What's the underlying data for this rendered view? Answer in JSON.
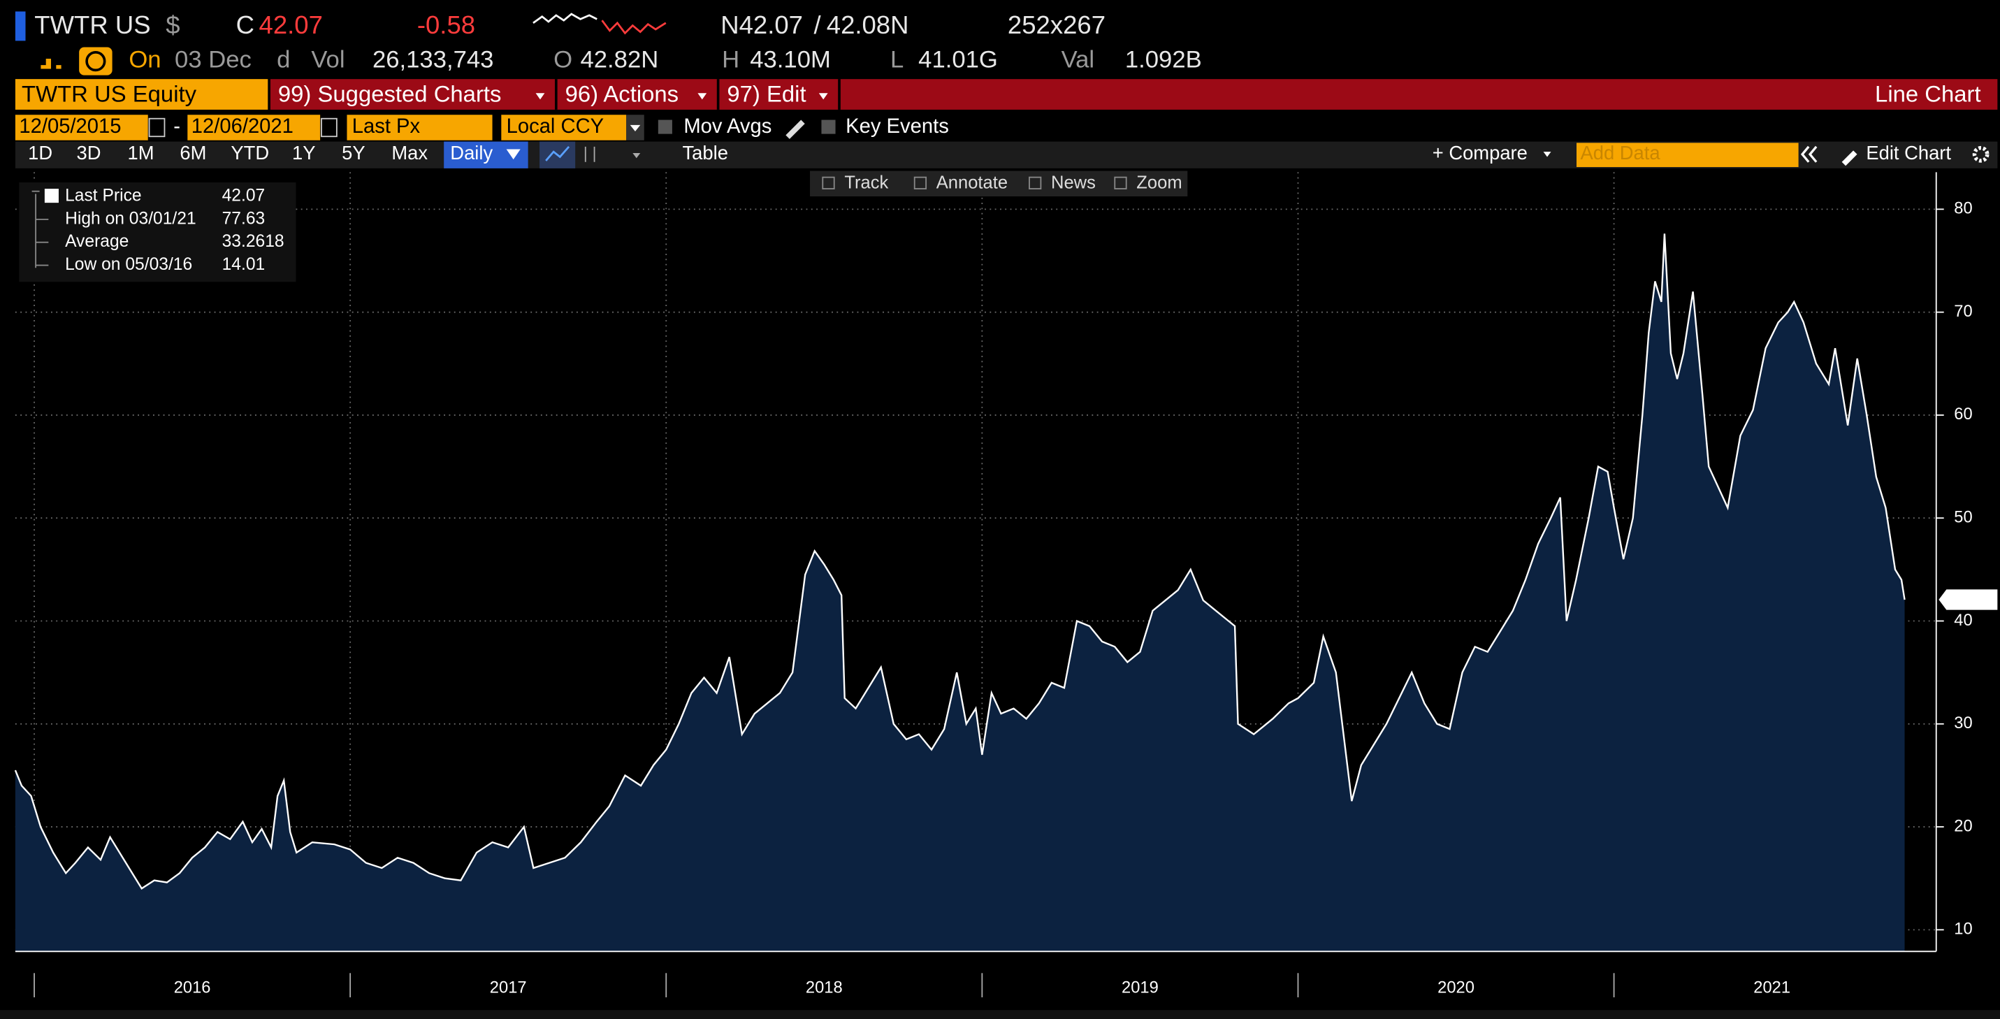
{
  "header": {
    "ticker": "TWTR US",
    "currency": "$",
    "close_label": "C",
    "price": "42.07",
    "change": "-0.58",
    "bid": "N42.07",
    "sep": "/",
    "ask": "42.08N",
    "size": "252x267"
  },
  "quote": {
    "on": "On",
    "date": "03 Dec",
    "period": "d",
    "vol_label": "Vol",
    "vol": "26,133,743",
    "open_label": "O",
    "open": "42.82N",
    "high_label": "H",
    "high": "43.10M",
    "low_label": "L",
    "low": "41.01G",
    "val_label": "Val",
    "val": "1.092B"
  },
  "toolbar": {
    "security": "TWTR US Equity",
    "menus": [
      "99) Suggested Charts",
      "96) Actions",
      "97) Edit"
    ],
    "chart_type": "Line Chart"
  },
  "settings": {
    "start": "12/05/2015",
    "dash": "-",
    "end": "12/06/2021",
    "field": "Last Px",
    "currency": "Local CCY",
    "mov_avgs": "Mov Avgs",
    "key_events": "Key Events"
  },
  "controls": {
    "ranges": [
      "1D",
      "3D",
      "1M",
      "6M",
      "YTD",
      "1Y",
      "5Y",
      "Max"
    ],
    "frequency": "Daily",
    "table": "Table",
    "compare": "+ Compare",
    "add_data": "Add Data",
    "edit_chart": "Edit Chart"
  },
  "chart_tools": [
    "Track",
    "Annotate",
    "News",
    "Zoom"
  ],
  "chart_data": {
    "type": "area",
    "last_value_label": "42.07",
    "stats": [
      {
        "label": "High on 03/01/21",
        "value": "77.63"
      },
      {
        "label": "Average",
        "value": "33.2618"
      },
      {
        "label": "Low on 05/03/16",
        "value": "14.01"
      }
    ],
    "xlim": [
      2015.94,
      2022.02
    ],
    "ylim": [
      7.9,
      83.6
    ],
    "xticks": [
      2016,
      2017,
      2018,
      2019,
      2020,
      2021
    ],
    "yticks": [
      10,
      20,
      30,
      40,
      50,
      60,
      70,
      80
    ],
    "grid": true,
    "x": [
      2015.94,
      2015.96,
      2015.99,
      2016.02,
      2016.06,
      2016.1,
      2016.13,
      2016.17,
      2016.21,
      2016.24,
      2016.28,
      2016.34,
      2016.38,
      2016.42,
      2016.46,
      2016.5,
      2016.54,
      2016.58,
      2016.62,
      2016.66,
      2016.69,
      2016.72,
      2016.75,
      2016.77,
      2016.79,
      2016.81,
      2016.83,
      2016.88,
      2016.95,
      2017.0,
      2017.05,
      2017.1,
      2017.15,
      2017.2,
      2017.25,
      2017.3,
      2017.35,
      2017.4,
      2017.45,
      2017.5,
      2017.55,
      2017.58,
      2017.63,
      2017.68,
      2017.73,
      2017.78,
      2017.82,
      2017.87,
      2017.92,
      2017.96,
      2018.0,
      2018.04,
      2018.08,
      2018.12,
      2018.16,
      2018.2,
      2018.24,
      2018.28,
      2018.32,
      2018.36,
      2018.4,
      2018.44,
      2018.47,
      2018.5,
      2018.53,
      2018.555,
      2018.565,
      2018.6,
      2018.65,
      2018.68,
      2018.72,
      2018.76,
      2018.8,
      2018.84,
      2018.88,
      2018.92,
      2018.95,
      2018.98,
      2019.0,
      2019.03,
      2019.06,
      2019.1,
      2019.14,
      2019.18,
      2019.22,
      2019.26,
      2019.3,
      2019.34,
      2019.38,
      2019.42,
      2019.46,
      2019.5,
      2019.54,
      2019.58,
      2019.62,
      2019.66,
      2019.7,
      2019.74,
      2019.78,
      2019.8,
      2019.81,
      2019.86,
      2019.92,
      2019.97,
      2020.0,
      2020.05,
      2020.08,
      2020.12,
      2020.16,
      2020.17,
      2020.2,
      2020.24,
      2020.28,
      2020.32,
      2020.36,
      2020.4,
      2020.44,
      2020.48,
      2020.52,
      2020.56,
      2020.6,
      2020.64,
      2020.68,
      2020.72,
      2020.76,
      2020.8,
      2020.83,
      2020.85,
      2020.88,
      2020.92,
      2020.95,
      2020.98,
      2021.0,
      2021.03,
      2021.06,
      2021.09,
      2021.11,
      2021.13,
      2021.15,
      2021.16,
      2021.18,
      2021.2,
      2021.22,
      2021.25,
      2021.28,
      2021.3,
      2021.33,
      2021.36,
      2021.4,
      2021.44,
      2021.48,
      2021.52,
      2021.55,
      2021.57,
      2021.6,
      2021.64,
      2021.68,
      2021.7,
      2021.74,
      2021.77,
      2021.8,
      2021.83,
      2021.86,
      2021.89,
      2021.91,
      2021.92
    ],
    "series": [
      {
        "name": "Last Price",
        "color": "#ffffff",
        "fill": "#0c2240",
        "values": [
          25.5,
          24.0,
          23.0,
          20.0,
          17.5,
          15.5,
          16.5,
          18.0,
          16.8,
          19.0,
          17.0,
          14.01,
          14.8,
          14.6,
          15.5,
          17.0,
          18.0,
          19.5,
          18.8,
          20.5,
          18.5,
          19.8,
          18.0,
          23.0,
          24.5,
          19.5,
          17.5,
          18.5,
          18.3,
          17.8,
          16.5,
          16.0,
          17.0,
          16.5,
          15.5,
          15.0,
          14.8,
          17.5,
          18.5,
          18.0,
          20.0,
          16.0,
          16.5,
          17.0,
          18.5,
          20.5,
          22.0,
          25.0,
          24.0,
          26.0,
          27.5,
          30.0,
          33.0,
          34.5,
          33.0,
          36.5,
          29.0,
          31.0,
          32.0,
          33.0,
          35.0,
          44.5,
          46.8,
          45.5,
          44.0,
          42.5,
          32.5,
          31.5,
          34.0,
          35.5,
          30.0,
          28.5,
          29.0,
          27.5,
          29.5,
          35.0,
          30.0,
          31.5,
          27.0,
          33.0,
          31.0,
          31.5,
          30.5,
          32.0,
          34.0,
          33.5,
          40.0,
          39.5,
          38.0,
          37.5,
          36.0,
          37.0,
          41.0,
          42.0,
          43.0,
          45.0,
          42.0,
          41.0,
          40.0,
          39.5,
          30.0,
          29.0,
          30.5,
          32.0,
          32.5,
          34.0,
          38.5,
          35.0,
          25.0,
          22.5,
          26.0,
          28.0,
          30.0,
          32.5,
          35.0,
          32.0,
          30.0,
          29.5,
          35.0,
          37.5,
          37.0,
          39.0,
          41.0,
          44.0,
          47.5,
          50.0,
          52.0,
          40.0,
          44.0,
          50.0,
          55.0,
          54.5,
          51.0,
          46.0,
          50.0,
          60.0,
          68.0,
          73.0,
          71.0,
          77.63,
          66.0,
          63.5,
          66.0,
          72.0,
          62.0,
          55.0,
          53.0,
          51.0,
          58.0,
          60.5,
          66.5,
          69.0,
          70.0,
          71.0,
          69.0,
          65.0,
          63.0,
          66.5,
          59.0,
          65.5,
          60.0,
          54.0,
          51.0,
          45.0,
          44.0,
          42.07
        ]
      }
    ]
  }
}
